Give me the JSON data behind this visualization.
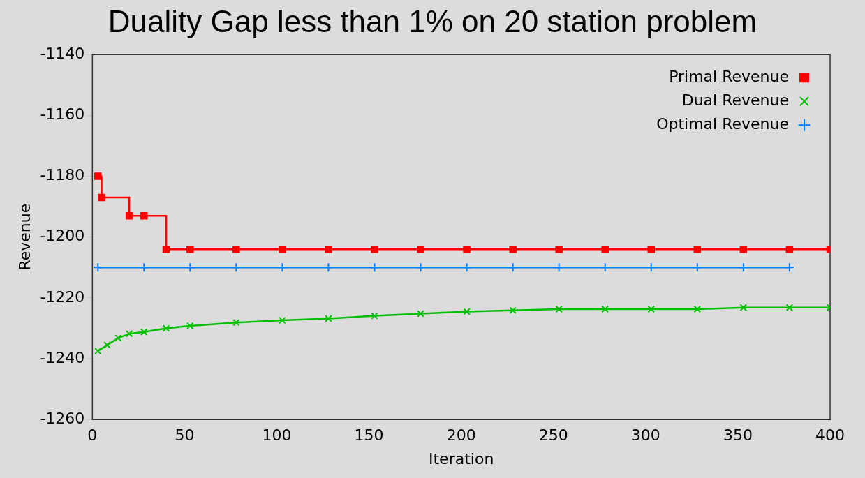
{
  "chart_data": {
    "type": "line",
    "title": "Duality Gap less than 1% on 20 station problem",
    "xlabel": "Iteration",
    "ylabel": "Revenue",
    "xlim": [
      0,
      400
    ],
    "xticks": [
      0,
      50,
      100,
      150,
      200,
      250,
      300,
      350,
      400
    ],
    "ylim": [
      -1260,
      -1140
    ],
    "yticks": [
      -1260,
      -1240,
      -1220,
      -1200,
      -1180,
      -1160,
      -1140
    ],
    "grid": false,
    "legend": "top right",
    "line_style": "solid",
    "series": [
      {
        "name": "Primal Revenue",
        "type": "step",
        "marker": "square",
        "color": "#ff0000",
        "x": [
          3,
          5,
          20,
          28,
          40,
          53,
          78,
          103,
          128,
          153,
          178,
          203,
          228,
          253,
          278,
          303,
          328,
          353,
          378,
          400
        ],
        "values": [
          -1180,
          -1187,
          -1193,
          -1193,
          -1204,
          -1204,
          -1204,
          -1204,
          -1204,
          -1204,
          -1204,
          -1204,
          -1204,
          -1204,
          -1204,
          -1204,
          -1204,
          -1204,
          -1204,
          -1204
        ]
      },
      {
        "name": "Dual Revenue",
        "type": "line",
        "marker": "cross-diagonal",
        "color": "#00c000",
        "x": [
          3,
          8,
          14,
          20,
          28,
          40,
          53,
          78,
          103,
          128,
          153,
          178,
          203,
          228,
          253,
          278,
          303,
          328,
          353,
          378,
          400
        ],
        "values": [
          -1237.5,
          -1235.5,
          -1233.2,
          -1231.8,
          -1231.2,
          -1230,
          -1229.2,
          -1228.1,
          -1227.4,
          -1226.8,
          -1225.9,
          -1225.2,
          -1224.5,
          -1224.1,
          -1223.7,
          -1223.7,
          -1223.7,
          -1223.7,
          -1223.2,
          -1223.2,
          -1223.2
        ]
      },
      {
        "name": "Optimal Revenue",
        "type": "line",
        "marker": "cross",
        "color": "#0080ff",
        "x": [
          3,
          28,
          53,
          78,
          103,
          128,
          153,
          178,
          203,
          228,
          253,
          278,
          303,
          328,
          353,
          378
        ],
        "values": [
          -1210,
          -1210,
          -1210,
          -1210,
          -1210,
          -1210,
          -1210,
          -1210,
          -1210,
          -1210,
          -1210,
          -1210,
          -1210,
          -1210,
          -1210,
          -1210
        ]
      }
    ]
  }
}
